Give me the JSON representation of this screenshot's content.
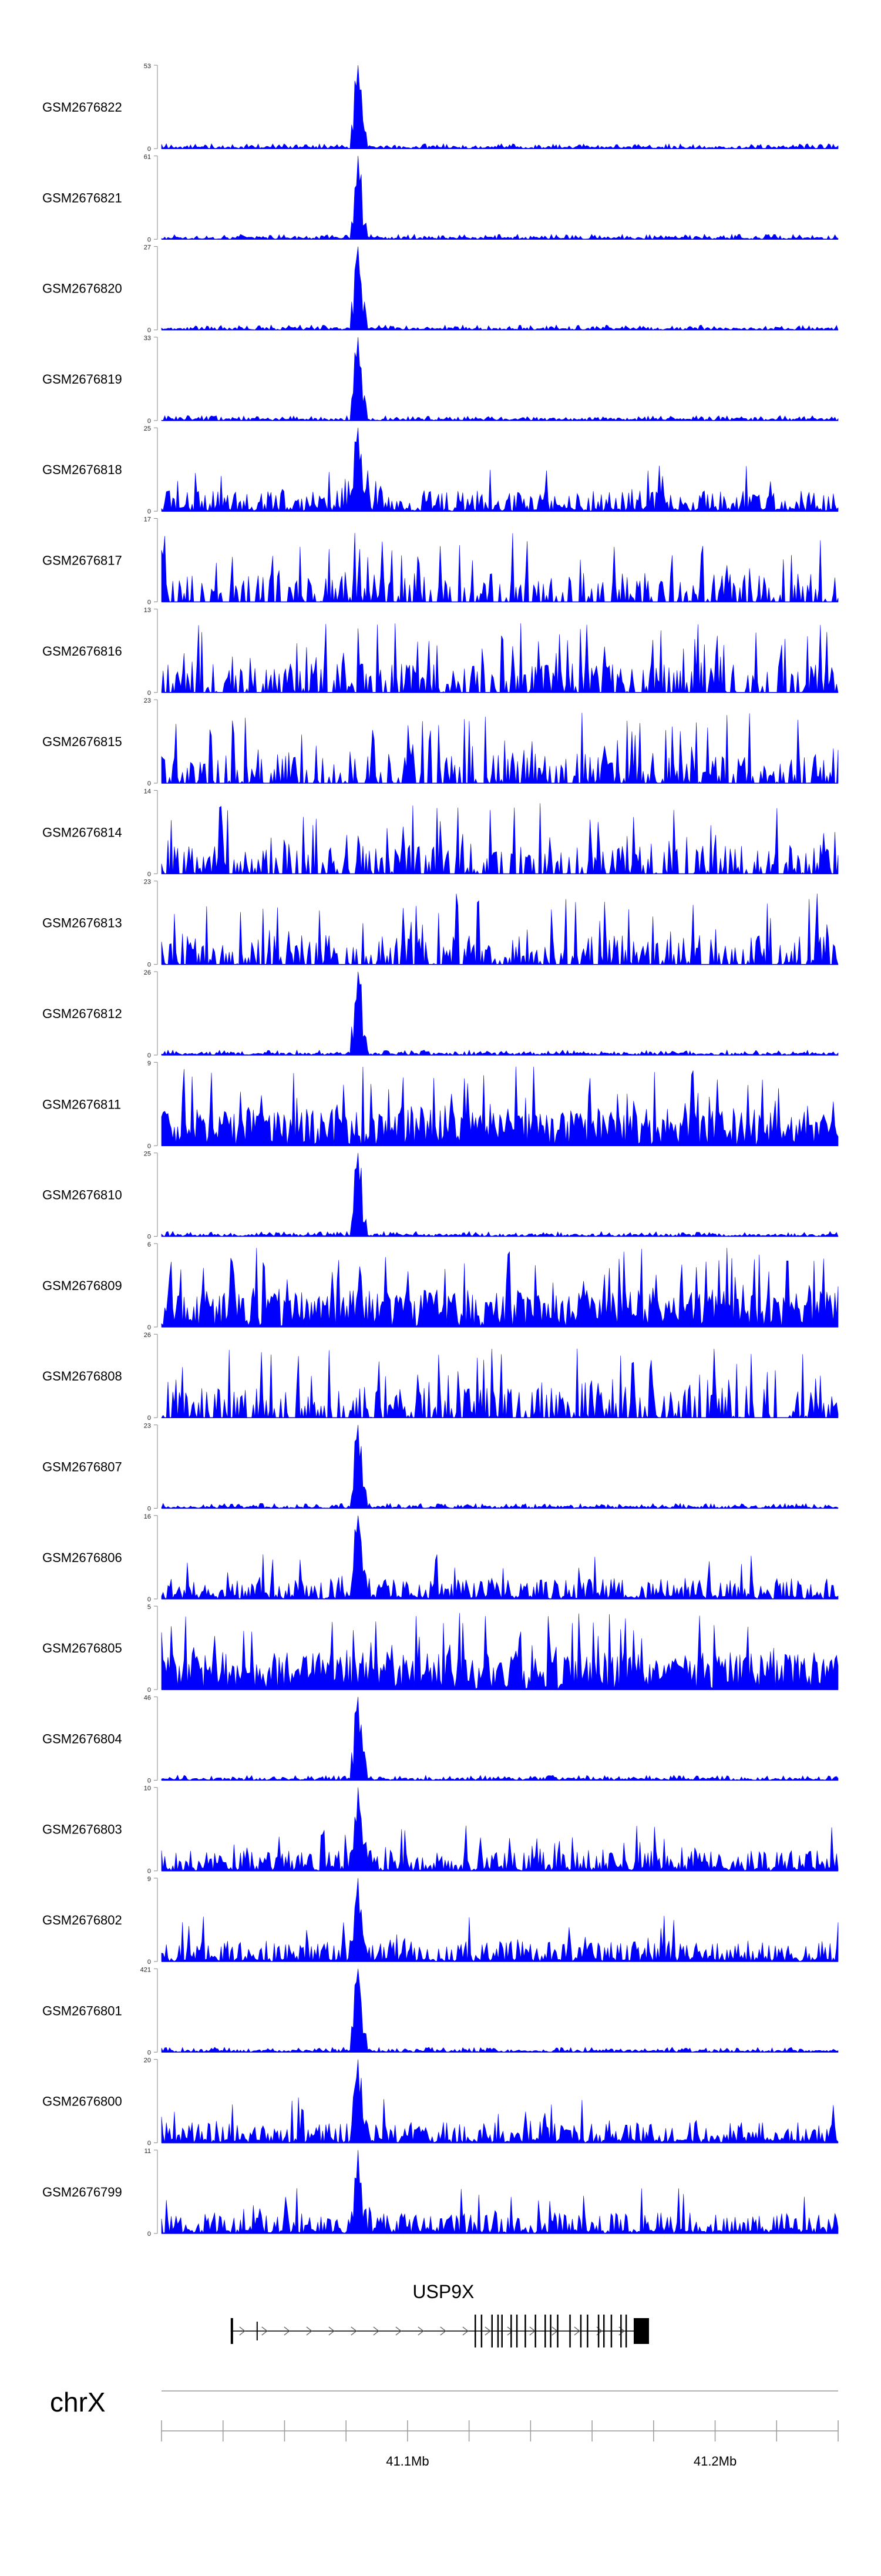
{
  "tracks": [
    {
      "label": "GSM2676822",
      "ymax": 53
    },
    {
      "label": "GSM2676821",
      "ymax": 61
    },
    {
      "label": "GSM2676820",
      "ymax": 27
    },
    {
      "label": "GSM2676819",
      "ymax": 33
    },
    {
      "label": "GSM2676818",
      "ymax": 25
    },
    {
      "label": "GSM2676817",
      "ymax": 17
    },
    {
      "label": "GSM2676816",
      "ymax": 13
    },
    {
      "label": "GSM2676815",
      "ymax": 23
    },
    {
      "label": "GSM2676814",
      "ymax": 14
    },
    {
      "label": "GSM2676813",
      "ymax": 23
    },
    {
      "label": "GSM2676812",
      "ymax": 26
    },
    {
      "label": "GSM2676811",
      "ymax": 9
    },
    {
      "label": "GSM2676810",
      "ymax": 25
    },
    {
      "label": "GSM2676809",
      "ymax": 6
    },
    {
      "label": "GSM2676808",
      "ymax": 26
    },
    {
      "label": "GSM2676807",
      "ymax": 23
    },
    {
      "label": "GSM2676806",
      "ymax": 16
    },
    {
      "label": "GSM2676805",
      "ymax": 5
    },
    {
      "label": "GSM2676804",
      "ymax": 46
    },
    {
      "label": "GSM2676803",
      "ymax": 10
    },
    {
      "label": "GSM2676802",
      "ymax": 9
    },
    {
      "label": "GSM2676801",
      "ymax": 421
    },
    {
      "label": "GSM2676800",
      "ymax": 20
    },
    {
      "label": "GSM2676799",
      "ymax": 11
    }
  ],
  "gene": {
    "name": "USP9X",
    "strand": "+",
    "start_mb": 41.0425,
    "end_mb": 41.1785
  },
  "axis": {
    "chromosome": "chrX",
    "range_mb": [
      41.02,
      41.24
    ],
    "labels": [
      {
        "value": 41.1,
        "text": "41.1Mb"
      },
      {
        "value": 41.2,
        "text": "41.2Mb"
      }
    ]
  },
  "colors": {
    "signal": "#0000ff",
    "axis": "#888888",
    "gene": "#000000"
  },
  "chart_data": {
    "type": "area",
    "xlabel": "chrX",
    "x_unit": "Mb",
    "xlim": [
      41.02,
      41.24
    ],
    "peak_position_mb": 41.084,
    "series": [
      {
        "name": "GSM2676822",
        "ylim": [
          0,
          53
        ],
        "profile": "sharp-peak"
      },
      {
        "name": "GSM2676821",
        "ylim": [
          0,
          61
        ],
        "profile": "sharp-peak"
      },
      {
        "name": "GSM2676820",
        "ylim": [
          0,
          27
        ],
        "profile": "sharp-peak"
      },
      {
        "name": "GSM2676819",
        "ylim": [
          0,
          33
        ],
        "profile": "sharp-peak"
      },
      {
        "name": "GSM2676818",
        "ylim": [
          0,
          25
        ],
        "profile": "peak-with-background"
      },
      {
        "name": "GSM2676817",
        "ylim": [
          0,
          17
        ],
        "profile": "sparse-background"
      },
      {
        "name": "GSM2676816",
        "ylim": [
          0,
          13
        ],
        "profile": "sparse-background"
      },
      {
        "name": "GSM2676815",
        "ylim": [
          0,
          23
        ],
        "profile": "sparse-background"
      },
      {
        "name": "GSM2676814",
        "ylim": [
          0,
          14
        ],
        "profile": "sparse-background"
      },
      {
        "name": "GSM2676813",
        "ylim": [
          0,
          23
        ],
        "profile": "sparse-background"
      },
      {
        "name": "GSM2676812",
        "ylim": [
          0,
          26
        ],
        "profile": "sharp-peak"
      },
      {
        "name": "GSM2676811",
        "ylim": [
          0,
          9
        ],
        "profile": "dense-background"
      },
      {
        "name": "GSM2676810",
        "ylim": [
          0,
          25
        ],
        "profile": "sharp-peak"
      },
      {
        "name": "GSM2676809",
        "ylim": [
          0,
          6
        ],
        "profile": "dense-background"
      },
      {
        "name": "GSM2676808",
        "ylim": [
          0,
          26
        ],
        "profile": "sparse-background"
      },
      {
        "name": "GSM2676807",
        "ylim": [
          0,
          23
        ],
        "profile": "sharp-peak"
      },
      {
        "name": "GSM2676806",
        "ylim": [
          0,
          16
        ],
        "profile": "peak-with-background"
      },
      {
        "name": "GSM2676805",
        "ylim": [
          0,
          5
        ],
        "profile": "dense-background"
      },
      {
        "name": "GSM2676804",
        "ylim": [
          0,
          46
        ],
        "profile": "sharp-peak"
      },
      {
        "name": "GSM2676803",
        "ylim": [
          0,
          10
        ],
        "profile": "peak-with-background"
      },
      {
        "name": "GSM2676802",
        "ylim": [
          0,
          9
        ],
        "profile": "peak-with-background"
      },
      {
        "name": "GSM2676801",
        "ylim": [
          0,
          421
        ],
        "profile": "sharp-peak"
      },
      {
        "name": "GSM2676800",
        "ylim": [
          0,
          20
        ],
        "profile": "peak-with-background"
      },
      {
        "name": "GSM2676799",
        "ylim": [
          0,
          11
        ],
        "profile": "peak-with-background"
      }
    ]
  }
}
